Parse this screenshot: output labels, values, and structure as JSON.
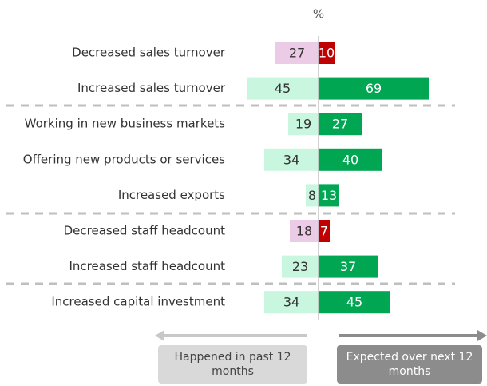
{
  "chart_data": {
    "type": "diverging-bar",
    "title": "%",
    "categories": [
      "Decreased sales turnover",
      "Increased sales turnover",
      "Working in new business markets",
      "Offering new products or services",
      "Increased exports",
      "Decreased staff headcount",
      "Increased staff headcount",
      "Increased capital investment"
    ],
    "series": [
      {
        "name": "Happened in past 12 months",
        "side": "left",
        "values": [
          27,
          45,
          19,
          34,
          8,
          18,
          23,
          34
        ],
        "colors": [
          "#eccbe6",
          "#c9f6df",
          "#c9f6df",
          "#c9f6df",
          "#c9f6df",
          "#eccbe6",
          "#c9f6df",
          "#c9f6df"
        ]
      },
      {
        "name": "Expected over next 12 months",
        "side": "right",
        "values": [
          10,
          69,
          27,
          40,
          13,
          7,
          37,
          45
        ],
        "colors": [
          "#c00000",
          "#00a651",
          "#00a651",
          "#00a651",
          "#00a651",
          "#c00000",
          "#00a651",
          "#00a651"
        ]
      }
    ]
  }
}
